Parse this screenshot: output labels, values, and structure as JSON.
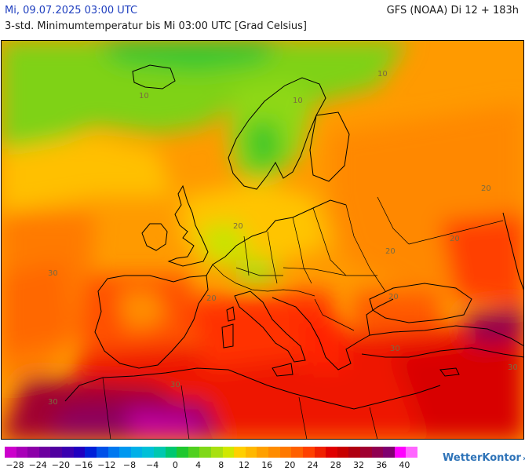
{
  "header": {
    "valid_time": "Mi, 09.07.2025 03:00 UTC",
    "model_run": "GFS (NOAA) Di 12 + 183h",
    "parameter": "3-std. Minimumtemperatur bis Mi 03:00 UTC [Grad Celsius]"
  },
  "map": {
    "region": "Europe",
    "contour_labels": [
      "10",
      "10",
      "10",
      "20",
      "20",
      "20",
      "20",
      "20",
      "20",
      "30",
      "30",
      "30",
      "30",
      "30"
    ]
  },
  "legend": {
    "tick_labels": [
      "−28",
      "−24",
      "−20",
      "−16",
      "−12",
      "−8",
      "−4",
      "0",
      "4",
      "8",
      "12",
      "16",
      "20",
      "24",
      "28",
      "32",
      "36",
      "40"
    ],
    "colors": [
      "#cc00cc",
      "#a800b8",
      "#8c00a8",
      "#6e00a0",
      "#5000a0",
      "#3a00b0",
      "#2000c0",
      "#0020d8",
      "#0050e8",
      "#0078f0",
      "#0098f0",
      "#00b0e8",
      "#00c0d8",
      "#00c8b0",
      "#00c870",
      "#20c830",
      "#50d020",
      "#80d818",
      "#a8e010",
      "#d0e800",
      "#ffd000",
      "#ffb800",
      "#ffa000",
      "#ff8c00",
      "#ff7800",
      "#ff6000",
      "#ff4000",
      "#f02000",
      "#e00000",
      "#c80000",
      "#b00010",
      "#a00030",
      "#900050",
      "#800070",
      "#ff00ff",
      "#ff66ff"
    ]
  },
  "branding": {
    "name": "WetterKontor",
    "mark": "›››"
  }
}
